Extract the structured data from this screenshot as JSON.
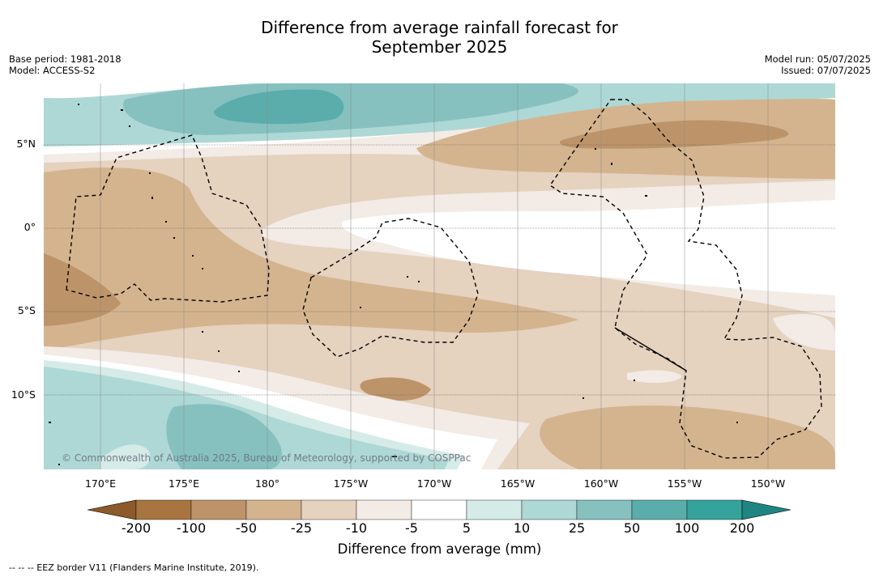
{
  "title_line1": "Difference from average rainfall forecast for",
  "title_line2": "September 2025",
  "meta_left": {
    "base_period": "Base period: 1981-2018",
    "model": "Model: ACCESS-S2"
  },
  "meta_right": {
    "model_run": "Model run: 05/07/2025",
    "issued": "Issued: 07/07/2025"
  },
  "latitude_labels": [
    "5°N",
    "0°",
    "5°S",
    "10°S"
  ],
  "longitude_labels": [
    "170°E",
    "175°E",
    "180°",
    "175°W",
    "170°W",
    "165°W",
    "160°W",
    "155°W",
    "150°W"
  ],
  "copyright": "© Commonwealth of Australia 2025, Bureau of Meteorology, supported by COSPPac",
  "colorbar": {
    "ticks": [
      "-200",
      "-100",
      "-50",
      "-25",
      "-10",
      "-5",
      "5",
      "10",
      "25",
      "50",
      "100",
      "200"
    ],
    "colors": [
      "#8c5a2b",
      "#a87540",
      "#bd946a",
      "#d4b48f",
      "#e5d2bf",
      "#f3ebe5",
      "#ffffff",
      "#d5ebe8",
      "#aed8d5",
      "#86c1bf",
      "#5aadab",
      "#35a29b",
      "#1f8582"
    ],
    "label": "Difference from average (mm)"
  },
  "footer": "--  --  -- EEZ border V11 (Flanders Marine Institute, 2019)."
}
